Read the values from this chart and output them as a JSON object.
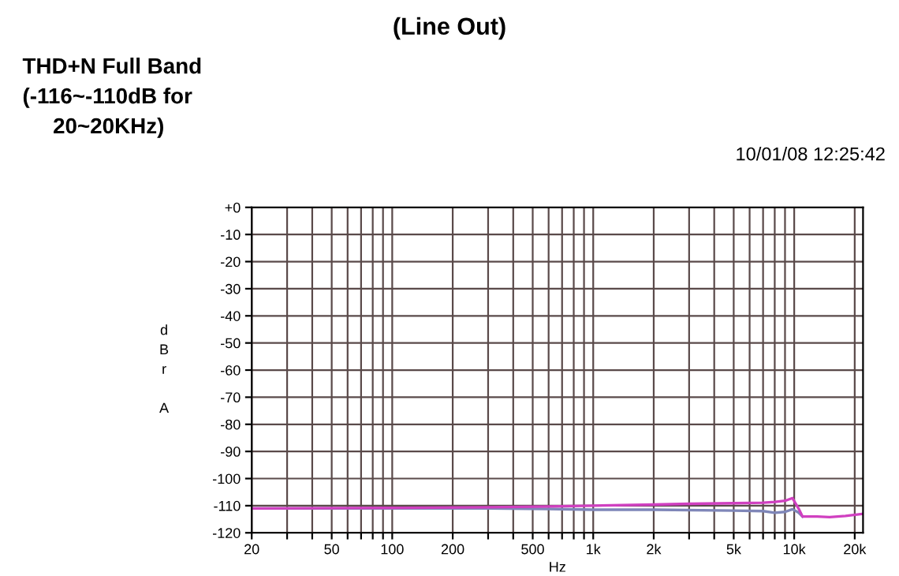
{
  "chart_data": {
    "type": "line",
    "title": "(Line Out)",
    "annotations": [
      "THD+N Full Band\n(-116~-110dB for\n     20~20KHz)",
      "10/01/08 12:25:42"
    ],
    "xlabel": "Hz",
    "ylabel": "dBr A",
    "log": "x",
    "grid": true,
    "line_style": "solid",
    "marker": "none",
    "xlim": [
      20,
      22000
    ],
    "ylim": [
      -120,
      0
    ],
    "xticks": [
      20,
      {
        "value": 30,
        "label": null
      },
      {
        "value": 40,
        "label": null
      },
      50,
      {
        "value": 60,
        "label": null
      },
      {
        "value": 70,
        "label": null
      },
      {
        "value": 80,
        "label": null
      },
      {
        "value": 90,
        "label": null
      },
      100,
      200,
      {
        "value": 300,
        "label": null
      },
      {
        "value": 400,
        "label": null
      },
      500,
      {
        "value": 600,
        "label": null
      },
      {
        "value": 700,
        "label": null
      },
      {
        "value": 800,
        "label": null
      },
      {
        "value": 900,
        "label": null
      },
      {
        "value": 1000,
        "label": "1k"
      },
      {
        "value": 2000,
        "label": "2k"
      },
      {
        "value": 3000,
        "label": null
      },
      {
        "value": 4000,
        "label": null
      },
      {
        "value": 5000,
        "label": "5k"
      },
      {
        "value": 6000,
        "label": null
      },
      {
        "value": 7000,
        "label": null
      },
      {
        "value": 8000,
        "label": null
      },
      {
        "value": 9000,
        "label": null
      },
      {
        "value": 10000,
        "label": "10k"
      },
      {
        "value": 20000,
        "label": "20k"
      }
    ],
    "yticks": [
      {
        "value": 0,
        "label": "+0"
      },
      -10,
      -20,
      -30,
      -40,
      -50,
      -60,
      -70,
      -80,
      -90,
      -100,
      -110,
      -120
    ],
    "series": [
      {
        "color": "#7f86b8",
        "x": [
          20,
          100,
          300,
          600,
          1000,
          2000,
          5000,
          7000,
          8000,
          9000,
          9800,
          10500,
          11000
        ],
        "values": [
          -111,
          -111,
          -111,
          -111.2,
          -111.5,
          -111.5,
          -111.8,
          -112,
          -112.6,
          -112.3,
          -111.3,
          -112.5,
          -114
        ]
      },
      {
        "color": "#d040c0",
        "x": [
          20,
          100,
          300,
          600,
          1000,
          2000,
          3000,
          5000,
          7000,
          8000,
          9000,
          9800,
          10500,
          11000,
          13000,
          15000,
          18000,
          22000
        ],
        "values": [
          -111,
          -110.8,
          -110.6,
          -110.3,
          -110,
          -109.6,
          -109.3,
          -109.1,
          -108.9,
          -108.6,
          -108.2,
          -107.2,
          -111,
          -114,
          -114,
          -114.2,
          -113.8,
          -113
        ]
      }
    ]
  }
}
